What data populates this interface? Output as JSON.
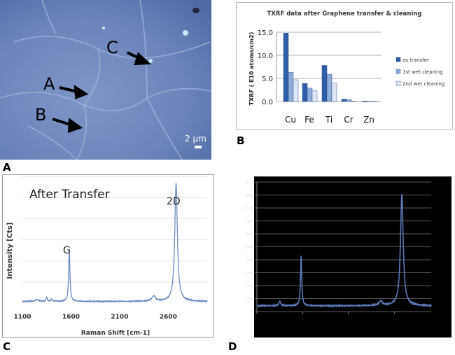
{
  "panels": {
    "a": {
      "label": "A",
      "annotations": [
        "A",
        "B",
        "C"
      ],
      "scale_bar": "2 µm"
    },
    "b": {
      "label": "B"
    },
    "c": {
      "label": "C"
    },
    "d": {
      "label": "D"
    }
  },
  "colors": {
    "series1": "#2f5fa8",
    "series2": "#8faedc",
    "series3": "#dde7f5",
    "spectrum": "#6b8cc4",
    "d_bg": "#000000"
  },
  "chart_data": [
    {
      "id": "B",
      "type": "bar",
      "title": "TXRF data after Graphene transfer & cleaning",
      "ylabel": "TXRF ( E10 atoms/cm2)",
      "xlabel": "",
      "categories": [
        "Cu",
        "Fe",
        "Ti",
        "Cr",
        "Zn"
      ],
      "ylim": [
        0,
        15
      ],
      "yticks": [
        "0.0",
        "5.0",
        "10.0",
        "15.0"
      ],
      "legend_position": "right",
      "series": [
        {
          "name": "as transfer",
          "values": [
            14.8,
            3.9,
            7.8,
            0.5,
            0.1
          ]
        },
        {
          "name": "1st wet cleaning",
          "values": [
            6.3,
            2.9,
            5.9,
            0.4,
            0.05
          ]
        },
        {
          "name": "2nd wet cleaning",
          "values": [
            4.7,
            2.3,
            4.0,
            0.1,
            0.02
          ]
        }
      ]
    },
    {
      "id": "C",
      "type": "line",
      "title": "After Transfer",
      "xlabel": "Raman Shift [cm-1]",
      "ylabel": "Intensity [Cts]",
      "xlim": [
        1100,
        3000
      ],
      "xticks": [
        "1100",
        "1600",
        "2100",
        "2600"
      ],
      "ylim": [
        0,
        6
      ],
      "grid": true,
      "annotations": [
        {
          "text": "G",
          "x": 1582
        },
        {
          "text": "2D",
          "x": 2680
        }
      ],
      "baseline": 0.15,
      "peaks": [
        {
          "x": 1250,
          "height": 0.08,
          "width": 20
        },
        {
          "x": 1350,
          "height": 0.2,
          "width": 8
        },
        {
          "x": 1400,
          "height": 0.08,
          "width": 12
        },
        {
          "x": 1582,
          "height": 2.4,
          "width": 8
        },
        {
          "x": 2450,
          "height": 0.25,
          "width": 22
        },
        {
          "x": 2680,
          "height": 5.6,
          "width": 16
        }
      ]
    },
    {
      "id": "D",
      "type": "line",
      "xlim": [
        1100,
        3000
      ],
      "ylim": [
        0,
        2000
      ],
      "yticks": [
        "0",
        "200",
        "400",
        "600",
        "800",
        "1000",
        "1200",
        "1400",
        "1600",
        "1800",
        "2000"
      ],
      "grid": true,
      "baseline": 90,
      "peaks": [
        {
          "x": 1350,
          "height": 70,
          "width": 12
        },
        {
          "x": 1582,
          "height": 770,
          "width": 8
        },
        {
          "x": 2450,
          "height": 70,
          "width": 22
        },
        {
          "x": 2680,
          "height": 1720,
          "width": 18
        }
      ]
    }
  ]
}
